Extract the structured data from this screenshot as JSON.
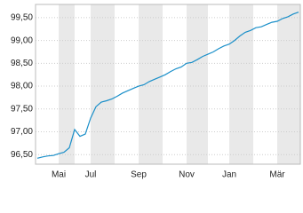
{
  "chart_data": {
    "type": "line",
    "categories": [
      null,
      null,
      null,
      null,
      "Mai",
      null,
      null,
      null,
      null,
      null,
      "Jul",
      null,
      null,
      null,
      null,
      null,
      null,
      null,
      null,
      "Sep",
      null,
      null,
      null,
      null,
      null,
      null,
      null,
      null,
      "Nov",
      null,
      null,
      null,
      null,
      null,
      null,
      null,
      "Jan",
      null,
      null,
      null,
      null,
      null,
      null,
      null,
      null,
      "Mär",
      null,
      null,
      null,
      null
    ],
    "values": [
      96.42,
      96.45,
      96.47,
      96.48,
      96.52,
      96.55,
      96.65,
      97.05,
      96.9,
      96.95,
      97.3,
      97.55,
      97.65,
      97.68,
      97.72,
      97.78,
      97.85,
      97.9,
      97.95,
      98.0,
      98.03,
      98.1,
      98.15,
      98.2,
      98.25,
      98.32,
      98.38,
      98.42,
      98.5,
      98.52,
      98.58,
      98.65,
      98.7,
      98.75,
      98.82,
      98.88,
      98.92,
      99.0,
      99.1,
      99.18,
      99.22,
      99.28,
      99.3,
      99.35,
      99.4,
      99.42,
      99.48,
      99.52,
      99.58,
      99.62
    ],
    "color": "#1a8fc9",
    "ylim": [
      96.29,
      99.79
    ],
    "yticks": [
      {
        "value": 96.5,
        "label": "96,50"
      },
      {
        "value": 97.0,
        "label": "97,00"
      },
      {
        "value": 97.5,
        "label": "97,50"
      },
      {
        "value": 98.0,
        "label": "98,00"
      },
      {
        "value": 98.5,
        "label": "98,50"
      },
      {
        "value": 99.0,
        "label": "99,00"
      },
      {
        "value": 99.5,
        "label": "99,50"
      }
    ],
    "grid": true
  }
}
